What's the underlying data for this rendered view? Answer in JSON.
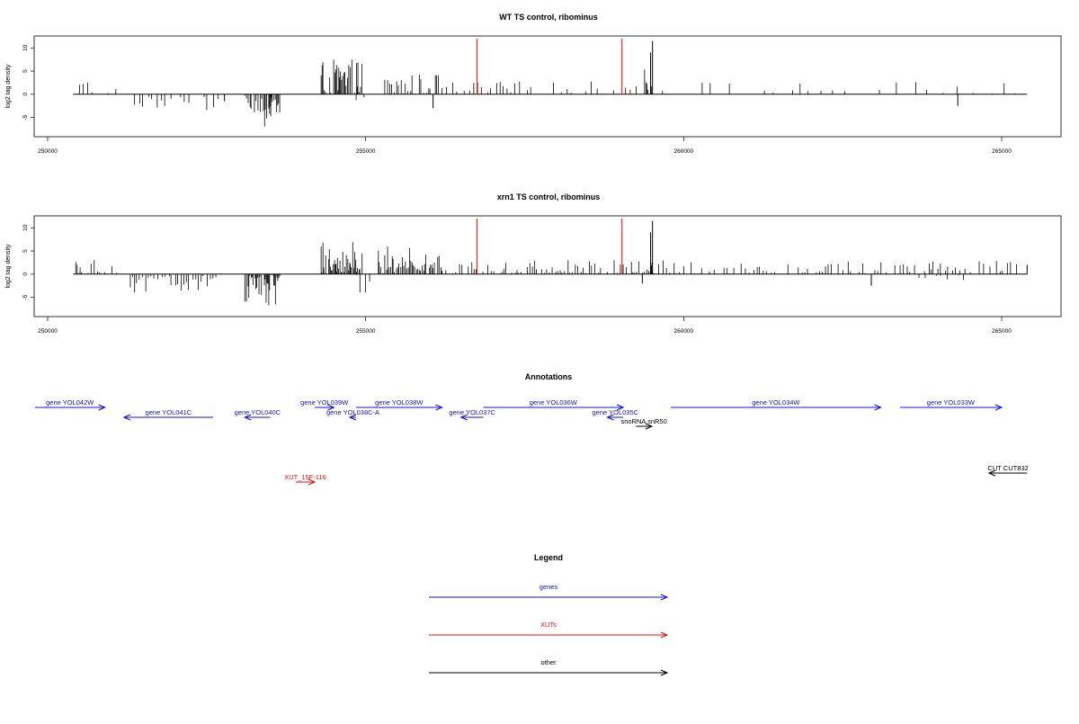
{
  "colors": {
    "gene": "#1010e0",
    "xut": "#e01010",
    "other": "#000000",
    "marker": "#ff2020",
    "bars": "#000000"
  },
  "chart_data": [
    {
      "type": "bar",
      "title": "WT TS control, ribominus",
      "ylabel": "log2 tag density",
      "xlim": [
        249800,
        266200
      ],
      "ylim": [
        -8,
        12
      ],
      "yticks": [
        -5,
        0,
        5,
        10
      ],
      "xticks": [
        250000,
        255000,
        260000,
        265000
      ],
      "markers_x": [
        256750,
        259030
      ],
      "segments": [
        {
          "x0": 250500,
          "x1": 250700,
          "sign": 1,
          "amp": 3.5,
          "density": 0.3
        },
        {
          "x0": 250950,
          "x1": 251100,
          "sign": 1,
          "amp": 2,
          "density": 0.2
        },
        {
          "x0": 251300,
          "x1": 252700,
          "sign": -1,
          "amp": 3.5,
          "density": 0.35
        },
        {
          "x0": 253100,
          "x1": 253650,
          "sign": -1,
          "amp": 7,
          "density": 1.4
        },
        {
          "x0": 254300,
          "x1": 254950,
          "sign": 1,
          "amp": 7.5,
          "density": 1.4
        },
        {
          "x0": 254850,
          "x1": 255000,
          "sign": -1,
          "amp": 1.8,
          "density": 0.2
        },
        {
          "x0": 255300,
          "x1": 256200,
          "sign": 1,
          "amp": 4.5,
          "density": 0.7
        },
        {
          "x0": 256200,
          "x1": 259300,
          "sign": 1,
          "amp": 2.8,
          "density": 0.3
        },
        {
          "x0": 259350,
          "x1": 259500,
          "sign": 1,
          "amp": 6,
          "density": 1
        },
        {
          "x0": 259500,
          "x1": 265300,
          "sign": 1,
          "amp": 2.8,
          "density": 0.12
        }
      ],
      "spikes": [
        {
          "x": 259510,
          "y": 11.5
        },
        {
          "x": 259480,
          "y": 9
        },
        {
          "x": 256060,
          "y": -3
        },
        {
          "x": 264310,
          "y": -2.5
        },
        {
          "x": 252780,
          "y": -1.5
        }
      ]
    },
    {
      "type": "bar",
      "title": "xrn1 TS control, ribominus",
      "ylabel": "log2 tag density",
      "xlim": [
        249800,
        266200
      ],
      "ylim": [
        -8,
        12
      ],
      "yticks": [
        -5,
        0,
        5,
        10
      ],
      "xticks": [
        250000,
        255000,
        260000,
        265000
      ],
      "markers_x": [
        256750,
        259030
      ],
      "segments": [
        {
          "x0": 250400,
          "x1": 251100,
          "sign": 1,
          "amp": 4,
          "density": 0.7
        },
        {
          "x0": 251300,
          "x1": 252700,
          "sign": -1,
          "amp": 4.5,
          "density": 0.5
        },
        {
          "x0": 253100,
          "x1": 253650,
          "sign": -1,
          "amp": 7,
          "density": 1.4
        },
        {
          "x0": 254300,
          "x1": 254950,
          "sign": 1,
          "amp": 7.5,
          "density": 1.4
        },
        {
          "x0": 254850,
          "x1": 255100,
          "sign": -1,
          "amp": 4,
          "density": 0.4
        },
        {
          "x0": 255200,
          "x1": 256200,
          "sign": 1,
          "amp": 6,
          "density": 1.1
        },
        {
          "x0": 256200,
          "x1": 259300,
          "sign": 1,
          "amp": 3,
          "density": 0.6
        },
        {
          "x0": 259350,
          "x1": 259500,
          "sign": 1,
          "amp": 6,
          "density": 1
        },
        {
          "x0": 259500,
          "x1": 265300,
          "sign": 1,
          "amp": 3,
          "density": 0.45
        },
        {
          "x0": 263700,
          "x1": 264400,
          "sign": -1,
          "amp": 2,
          "density": 0.2
        }
      ],
      "spikes": [
        {
          "x": 259510,
          "y": 11.5
        },
        {
          "x": 259480,
          "y": 9
        },
        {
          "x": 259350,
          "y": -2
        },
        {
          "x": 262950,
          "y": -2.5
        },
        {
          "x": 265400,
          "y": 2
        }
      ]
    }
  ],
  "annotations": {
    "title": "Annotations",
    "items": [
      {
        "label": "gene YOL042W",
        "type": "gene",
        "x0": 249800,
        "x1": 250900,
        "row": 0,
        "dir": "right"
      },
      {
        "label": "gene YOL041C",
        "type": "gene",
        "x0": 251200,
        "x1": 252600,
        "row": 1,
        "dir": "left"
      },
      {
        "label": "gene YOL040C",
        "type": "gene",
        "x0": 253100,
        "x1": 253500,
        "row": 1,
        "dir": "left"
      },
      {
        "label": "gene YOL039W",
        "type": "gene",
        "x0": 254200,
        "x1": 254500,
        "row": 0,
        "dir": "right"
      },
      {
        "label": "gene YOL038C-A",
        "type": "gene",
        "x0": 254750,
        "x1": 254850,
        "row": 1,
        "dir": "left"
      },
      {
        "label": "gene YOL038W",
        "type": "gene",
        "x0": 254850,
        "x1": 256200,
        "row": 0,
        "dir": "right"
      },
      {
        "label": "gene YOL037C",
        "type": "gene",
        "x0": 256500,
        "x1": 256850,
        "row": 1,
        "dir": "left"
      },
      {
        "label": "gene YOL036W",
        "type": "gene",
        "x0": 256850,
        "x1": 259050,
        "row": 0,
        "dir": "right"
      },
      {
        "label": "gene YOL035C",
        "type": "gene",
        "x0": 258800,
        "x1": 259050,
        "row": 1,
        "dir": "left"
      },
      {
        "label": "snoRNA snR50",
        "type": "other",
        "x0": 259250,
        "x1": 259500,
        "row": 2,
        "dir": "right"
      },
      {
        "label": "gene YOL034W",
        "type": "gene",
        "x0": 259800,
        "x1": 263100,
        "row": 0,
        "dir": "right"
      },
      {
        "label": "gene YOL033W",
        "type": "gene",
        "x0": 263400,
        "x1": 265000,
        "row": 0,
        "dir": "right"
      },
      {
        "label": "XUT_15F-116",
        "type": "xut",
        "x0": 253900,
        "x1": 254200,
        "row": 3,
        "dir": "right"
      },
      {
        "label": "CUT CUT832",
        "type": "other",
        "x0": 264800,
        "x1": 265400,
        "row": 4,
        "dir": "left"
      }
    ]
  },
  "legend": {
    "title": "Legend",
    "items": [
      {
        "label": "genes",
        "type": "gene"
      },
      {
        "label": "XUTs",
        "type": "xut"
      },
      {
        "label": "other",
        "type": "other"
      }
    ]
  }
}
